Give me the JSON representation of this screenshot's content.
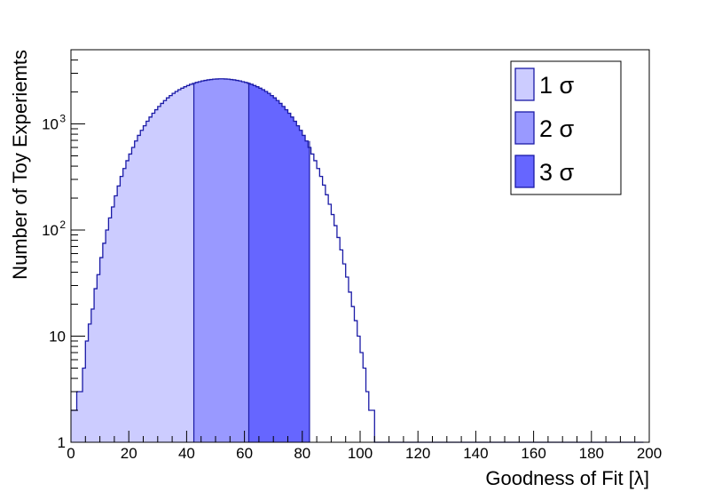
{
  "chart_data": {
    "type": "histogram",
    "xlabel": "Goodness of Fit [λ]",
    "ylabel": "Number of Toy Experiemts",
    "xlim": [
      0,
      200
    ],
    "ylim": [
      1,
      5000
    ],
    "y_scale": "log",
    "grid": false,
    "legend_position": "top-right",
    "x_ticks": [
      "0",
      "20",
      "40",
      "60",
      "80",
      "100",
      "120",
      "140",
      "160",
      "180",
      "200"
    ],
    "y_ticks": [
      {
        "value": 1,
        "label": "1"
      },
      {
        "value": 10,
        "label": "10"
      },
      {
        "value": 100,
        "label": "10",
        "sup": "2"
      },
      {
        "value": 1000,
        "label": "10",
        "sup": "3"
      }
    ],
    "bin_width": 1,
    "bin_start": 0,
    "counts": [
      2,
      2,
      3,
      3,
      5,
      9,
      13,
      18,
      28,
      38,
      55,
      75,
      100,
      130,
      165,
      210,
      260,
      320,
      380,
      450,
      520,
      600,
      690,
      780,
      870,
      960,
      1060,
      1160,
      1260,
      1360,
      1460,
      1560,
      1660,
      1760,
      1850,
      1940,
      2020,
      2100,
      2170,
      2240,
      2300,
      2360,
      2410,
      2460,
      2500,
      2540,
      2570,
      2600,
      2620,
      2640,
      2650,
      2660,
      2660,
      2650,
      2640,
      2620,
      2600,
      2570,
      2540,
      2500,
      2460,
      2410,
      2360,
      2300,
      2240,
      2170,
      2100,
      2020,
      1940,
      1850,
      1760,
      1660,
      1560,
      1460,
      1360,
      1260,
      1160,
      1060,
      960,
      870,
      780,
      690,
      600,
      520,
      450,
      380,
      320,
      265,
      215,
      175,
      140,
      110,
      85,
      65,
      48,
      36,
      26,
      19,
      14,
      10,
      7,
      5,
      3,
      2,
      2,
      1,
      1,
      0,
      1,
      1,
      0,
      0,
      0,
      0,
      0,
      0,
      0,
      0,
      0,
      0,
      0,
      0,
      0,
      0,
      0,
      0,
      0,
      0,
      0,
      0,
      0,
      0,
      0,
      0,
      0,
      0,
      0,
      0,
      0,
      0,
      0,
      0,
      0,
      0,
      0,
      0,
      0,
      0,
      0,
      0,
      0,
      0,
      0,
      0,
      0,
      0,
      0,
      0,
      0,
      0,
      0,
      0,
      0,
      0,
      0,
      0,
      0,
      0,
      0,
      0,
      0,
      0,
      0,
      0,
      0,
      0,
      0,
      0,
      0,
      0,
      0,
      0,
      0,
      0,
      0,
      0,
      0,
      0,
      0,
      0,
      0,
      0,
      0,
      0,
      0,
      0,
      0,
      0
    ],
    "regions": [
      {
        "name": "1 σ",
        "from": 0,
        "to": 42.5,
        "color": "#ccccff"
      },
      {
        "name": "2 σ",
        "from": 42.5,
        "to": 61.5,
        "color": "#9999ff"
      },
      {
        "name": "3 σ",
        "from": 61.5,
        "to": 82.5,
        "color": "#6666ff"
      }
    ],
    "line_color": "#1a1aa6"
  }
}
